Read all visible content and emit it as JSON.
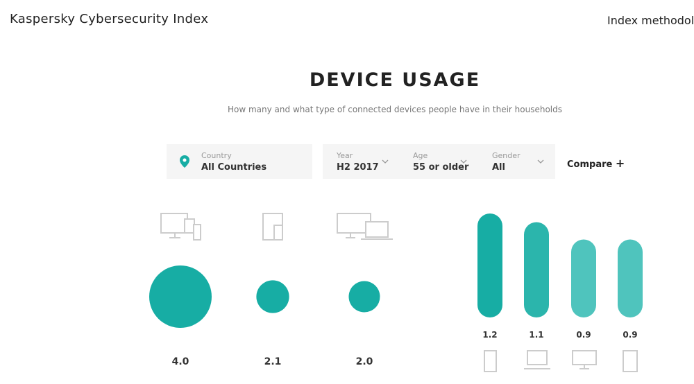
{
  "header": {
    "brand": "Kaspersky Cybersecurity Index",
    "link": "Index methodology"
  },
  "title": "DEVICE USAGE",
  "subtitle": "How many and what type of connected devices people have in their households",
  "filters": [
    {
      "label": "Country",
      "value": "All Countries"
    },
    {
      "label": "Year",
      "value": "H2 2017"
    },
    {
      "label": "Age",
      "value": "55 or older"
    },
    {
      "label": "Gender",
      "value": "All"
    }
  ],
  "compare": "Compare",
  "chart_data": [
    {
      "type": "bubble",
      "values": [
        4.0,
        2.1,
        2.0
      ],
      "value_labels": [
        "4.0",
        "2.1",
        "2.0"
      ],
      "color": "#17ada4"
    },
    {
      "type": "bar",
      "values": [
        1.2,
        1.1,
        0.9,
        0.9
      ],
      "colors": [
        "#17ada4",
        "#2bb5ac",
        "#4fc4bd",
        "#4fc4bd"
      ]
    }
  ]
}
